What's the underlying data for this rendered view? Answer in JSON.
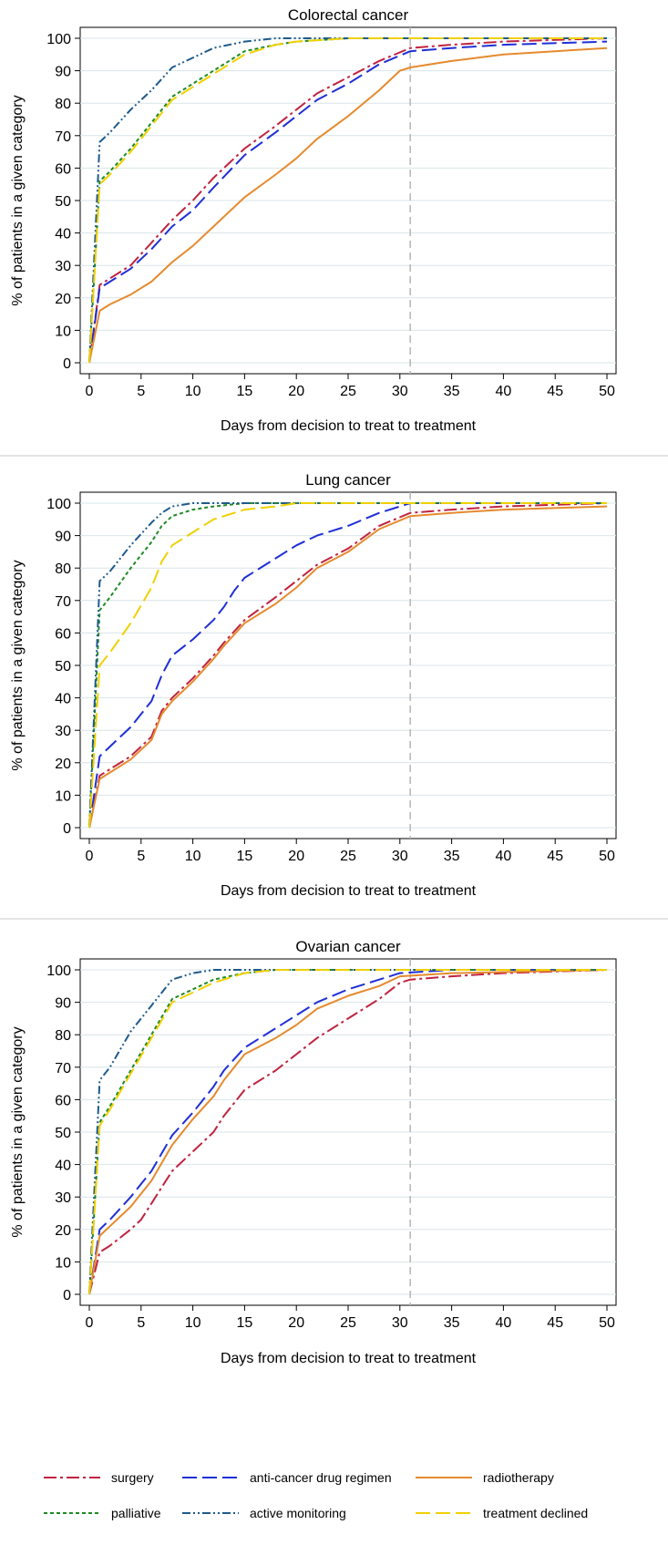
{
  "chart_data": [
    {
      "type": "line",
      "title": "Colorectal cancer",
      "xlabel": "Days from decision to treat to treatment",
      "ylabel": "% of patients in a given category",
      "xlim": [
        0,
        50
      ],
      "ylim": [
        0,
        100
      ],
      "x_ticks": [
        0,
        5,
        10,
        15,
        20,
        25,
        30,
        35,
        40,
        45,
        50
      ],
      "y_ticks": [
        0,
        10,
        20,
        30,
        40,
        50,
        60,
        70,
        80,
        90,
        100
      ],
      "x_tick_labels": [
        "0",
        "5",
        "10",
        "15",
        "20",
        "25",
        "30",
        "35",
        "40",
        "45",
        "50"
      ],
      "y_tick_labels": [
        "0",
        "10",
        "20",
        "30",
        "40",
        "50",
        "60",
        "70",
        "80",
        "90",
        "100"
      ],
      "grid": "horizontal",
      "reference_line_x": 31,
      "series": [
        {
          "name": "surgery",
          "x": [
            0,
            1,
            2,
            4,
            6,
            8,
            10,
            12,
            15,
            18,
            20,
            22,
            25,
            28,
            31,
            35,
            40,
            50
          ],
          "y": [
            0,
            24,
            26,
            30,
            37,
            44,
            50,
            57,
            66,
            73,
            78,
            83,
            88,
            93,
            97,
            98,
            99,
            100
          ]
        },
        {
          "name": "anti-cancer drug regimen",
          "x": [
            0,
            1,
            2,
            4,
            6,
            8,
            10,
            12,
            15,
            18,
            20,
            22,
            25,
            28,
            31,
            35,
            40,
            50
          ],
          "y": [
            0,
            23,
            25,
            29,
            35,
            42,
            47,
            54,
            64,
            71,
            76,
            81,
            86,
            92,
            96,
            97,
            98,
            99
          ]
        },
        {
          "name": "radiotherapy",
          "x": [
            0,
            1,
            2,
            4,
            6,
            8,
            10,
            12,
            15,
            18,
            20,
            22,
            25,
            28,
            30,
            31,
            35,
            40,
            45,
            50
          ],
          "y": [
            0,
            16,
            18,
            21,
            25,
            31,
            36,
            42,
            51,
            58,
            63,
            69,
            76,
            84,
            90,
            91,
            93,
            95,
            96,
            97
          ]
        },
        {
          "name": "palliative",
          "x": [
            0,
            1,
            2,
            4,
            6,
            8,
            10,
            12,
            15,
            18,
            20,
            25,
            30,
            50
          ],
          "y": [
            0,
            56,
            59,
            66,
            74,
            82,
            86,
            90,
            96,
            98,
            99,
            100,
            100,
            100
          ]
        },
        {
          "name": "active monitoring",
          "x": [
            0,
            1,
            2,
            4,
            6,
            8,
            10,
            12,
            15,
            18,
            20,
            50
          ],
          "y": [
            0,
            68,
            71,
            78,
            84,
            91,
            94,
            97,
            99,
            100,
            100,
            100
          ]
        },
        {
          "name": "treatment declined",
          "x": [
            0,
            1,
            2,
            4,
            6,
            8,
            10,
            12,
            15,
            18,
            20,
            25,
            30,
            50
          ],
          "y": [
            0,
            55,
            58,
            65,
            73,
            81,
            85,
            89,
            95,
            98,
            99,
            100,
            100,
            100
          ]
        }
      ]
    },
    {
      "type": "line",
      "title": "Lung cancer",
      "xlabel": "Days from decision to treat to treatment",
      "ylabel": "% of patients in a given category",
      "xlim": [
        0,
        50
      ],
      "ylim": [
        0,
        100
      ],
      "x_ticks": [
        0,
        5,
        10,
        15,
        20,
        25,
        30,
        35,
        40,
        45,
        50
      ],
      "y_ticks": [
        0,
        10,
        20,
        30,
        40,
        50,
        60,
        70,
        80,
        90,
        100
      ],
      "x_tick_labels": [
        "0",
        "5",
        "10",
        "15",
        "20",
        "25",
        "30",
        "35",
        "40",
        "45",
        "50"
      ],
      "y_tick_labels": [
        "0",
        "10",
        "20",
        "30",
        "40",
        "50",
        "60",
        "70",
        "80",
        "90",
        "100"
      ],
      "grid": "horizontal",
      "reference_line_x": 31,
      "series": [
        {
          "name": "surgery",
          "x": [
            0,
            1,
            2,
            4,
            6,
            7,
            8,
            10,
            12,
            13,
            15,
            18,
            20,
            22,
            25,
            28,
            31,
            35,
            40,
            50
          ],
          "y": [
            0,
            16,
            18,
            22,
            28,
            36,
            40,
            46,
            53,
            57,
            64,
            71,
            76,
            81,
            86,
            93,
            97,
            98,
            99,
            100
          ]
        },
        {
          "name": "anti-cancer drug regimen",
          "x": [
            0,
            1,
            2,
            4,
            6,
            7,
            8,
            10,
            12,
            13,
            14,
            15,
            18,
            20,
            22,
            25,
            28,
            30,
            31,
            35,
            40,
            50
          ],
          "y": [
            0,
            22,
            25,
            31,
            39,
            47,
            53,
            58,
            64,
            68,
            73,
            77,
            83,
            87,
            90,
            93,
            97,
            99,
            100,
            100,
            100,
            100
          ]
        },
        {
          "name": "radiotherapy",
          "x": [
            0,
            1,
            2,
            4,
            6,
            7,
            8,
            10,
            12,
            13,
            15,
            18,
            20,
            22,
            25,
            28,
            31,
            35,
            40,
            50
          ],
          "y": [
            0,
            15,
            17,
            21,
            27,
            35,
            39,
            45,
            52,
            56,
            63,
            69,
            74,
            80,
            85,
            92,
            96,
            97,
            98,
            99
          ]
        },
        {
          "name": "palliative",
          "x": [
            0,
            1,
            2,
            4,
            6,
            7,
            8,
            10,
            12,
            15,
            20,
            50
          ],
          "y": [
            0,
            67,
            71,
            80,
            88,
            93,
            96,
            98,
            99,
            100,
            100,
            100
          ]
        },
        {
          "name": "active monitoring",
          "x": [
            0,
            1,
            2,
            4,
            6,
            7,
            8,
            10,
            12,
            15,
            50
          ],
          "y": [
            0,
            76,
            79,
            87,
            94,
            97,
            99,
            100,
            100,
            100,
            100
          ]
        },
        {
          "name": "treatment declined",
          "x": [
            0,
            1,
            2,
            4,
            6,
            7,
            8,
            10,
            12,
            15,
            18,
            20,
            25,
            50
          ],
          "y": [
            0,
            50,
            54,
            63,
            74,
            82,
            87,
            91,
            95,
            98,
            99,
            100,
            100,
            100
          ]
        }
      ]
    },
    {
      "type": "line",
      "title": "Ovarian cancer",
      "xlabel": "Days from decision to treat to treatment",
      "ylabel": "% of patients in a given category",
      "xlim": [
        0,
        50
      ],
      "ylim": [
        0,
        100
      ],
      "x_ticks": [
        0,
        5,
        10,
        15,
        20,
        25,
        30,
        35,
        40,
        45,
        50
      ],
      "y_ticks": [
        0,
        10,
        20,
        30,
        40,
        50,
        60,
        70,
        80,
        90,
        100
      ],
      "x_tick_labels": [
        "0",
        "5",
        "10",
        "15",
        "20",
        "25",
        "30",
        "35",
        "40",
        "45",
        "50"
      ],
      "y_tick_labels": [
        "0",
        "10",
        "20",
        "30",
        "40",
        "50",
        "60",
        "70",
        "80",
        "90",
        "100"
      ],
      "grid": "horizontal",
      "reference_line_x": 31,
      "series": [
        {
          "name": "surgery",
          "x": [
            0,
            1,
            2,
            4,
            5,
            6,
            7,
            8,
            10,
            12,
            13,
            15,
            18,
            20,
            22,
            25,
            28,
            30,
            31,
            35,
            40,
            50
          ],
          "y": [
            0,
            13,
            15,
            20,
            23,
            28,
            33,
            38,
            44,
            50,
            55,
            63,
            69,
            74,
            79,
            85,
            91,
            96,
            97,
            98,
            99,
            100
          ]
        },
        {
          "name": "anti-cancer drug regimen",
          "x": [
            0,
            1,
            2,
            4,
            6,
            8,
            10,
            12,
            13,
            15,
            18,
            20,
            22,
            25,
            28,
            30,
            35,
            50
          ],
          "y": [
            0,
            20,
            23,
            30,
            38,
            49,
            56,
            64,
            69,
            76,
            82,
            86,
            90,
            94,
            97,
            99,
            100,
            100
          ]
        },
        {
          "name": "radiotherapy",
          "x": [
            0,
            1,
            2,
            4,
            6,
            8,
            10,
            12,
            13,
            15,
            18,
            20,
            22,
            25,
            28,
            30,
            35,
            50
          ],
          "y": [
            0,
            18,
            21,
            27,
            35,
            46,
            54,
            61,
            66,
            74,
            79,
            83,
            88,
            92,
            95,
            98,
            99,
            100
          ]
        },
        {
          "name": "palliative",
          "x": [
            0,
            1,
            2,
            4,
            6,
            8,
            10,
            12,
            15,
            18,
            20,
            50
          ],
          "y": [
            0,
            53,
            58,
            69,
            80,
            91,
            94,
            97,
            99,
            100,
            100,
            100
          ]
        },
        {
          "name": "active monitoring",
          "x": [
            0,
            1,
            2,
            4,
            6,
            8,
            10,
            12,
            15,
            50
          ],
          "y": [
            0,
            66,
            70,
            81,
            89,
            97,
            99,
            100,
            100,
            100
          ]
        },
        {
          "name": "treatment declined",
          "x": [
            0,
            1,
            2,
            4,
            6,
            8,
            10,
            12,
            15,
            18,
            20,
            50
          ],
          "y": [
            0,
            52,
            57,
            68,
            79,
            90,
            93,
            96,
            99,
            100,
            100,
            100
          ]
        }
      ]
    }
  ],
  "legend": {
    "placement": "bottom",
    "items": [
      {
        "label": "surgery",
        "color": "#c0233f",
        "dash": "dash-dot"
      },
      {
        "label": "anti-cancer drug regimen",
        "color": "#1f2fd6",
        "dash": "long-dash"
      },
      {
        "label": "radiotherapy",
        "color": "#e58a2e",
        "dash": "solid"
      },
      {
        "label": "palliative",
        "color": "#1f8a24",
        "dash": "short-dash"
      },
      {
        "label": "active monitoring",
        "color": "#1e5a8c",
        "dash": "dash-dot-dot"
      },
      {
        "label": "treatment declined",
        "color": "#f0d000",
        "dash": "long-dash"
      }
    ]
  },
  "colors": {
    "surgery": "#c0233f",
    "anti-cancer drug regimen": "#1f2fd6",
    "radiotherapy": "#e58a2e",
    "palliative": "#1f8a24",
    "active monitoring": "#1e5a8c",
    "treatment declined": "#f0d000",
    "gridline": "#d9e4e8",
    "reference_line": "#b5b5b5",
    "panel_separator": "#c8c8c8"
  }
}
